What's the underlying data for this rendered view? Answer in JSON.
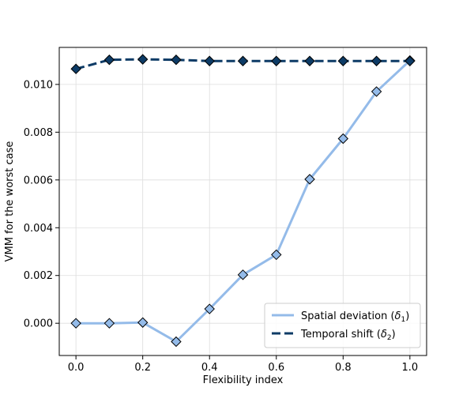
{
  "chart_data": {
    "type": "line",
    "xlabel": "Flexibility index",
    "ylabel": "VMM for the worst case",
    "xlim": [
      -0.05,
      1.05
    ],
    "ylim": [
      -0.00135,
      0.01155
    ],
    "xticks": [
      "0.0",
      "0.2",
      "0.4",
      "0.6",
      "0.8",
      "1.0"
    ],
    "yticks": [
      "0.000",
      "0.002",
      "0.004",
      "0.006",
      "0.008",
      "0.010"
    ],
    "grid": true,
    "legend_position": "lower-right",
    "x": [
      0.0,
      0.1,
      0.2,
      0.3,
      0.4,
      0.5,
      0.6,
      0.7,
      0.8,
      0.9,
      1.0
    ],
    "series": [
      {
        "name": "Spatial deviation (δ1)",
        "legend_main": "Spatial deviation (",
        "legend_symbol": "δ",
        "legend_sub": "1",
        "legend_tail": ")",
        "line_style": "solid",
        "line_color": "#94bbe9",
        "marker_color": "#94bbe9",
        "values": [
          0.0,
          0.0,
          3e-05,
          -0.00077,
          0.0006,
          0.00203,
          0.00287,
          0.00603,
          0.00773,
          0.0097,
          0.011
        ]
      },
      {
        "name": "Temporal shift (δ2)",
        "legend_main": "Temporal shift (",
        "legend_symbol": "δ",
        "legend_sub": "2",
        "legend_tail": ")",
        "line_style": "dashed",
        "line_color": "#0d3b66",
        "marker_color": "#0d3b66",
        "values": [
          0.01065,
          0.01103,
          0.01105,
          0.01103,
          0.01098,
          0.01098,
          0.01098,
          0.01098,
          0.01098,
          0.01098,
          0.01098
        ]
      }
    ]
  }
}
